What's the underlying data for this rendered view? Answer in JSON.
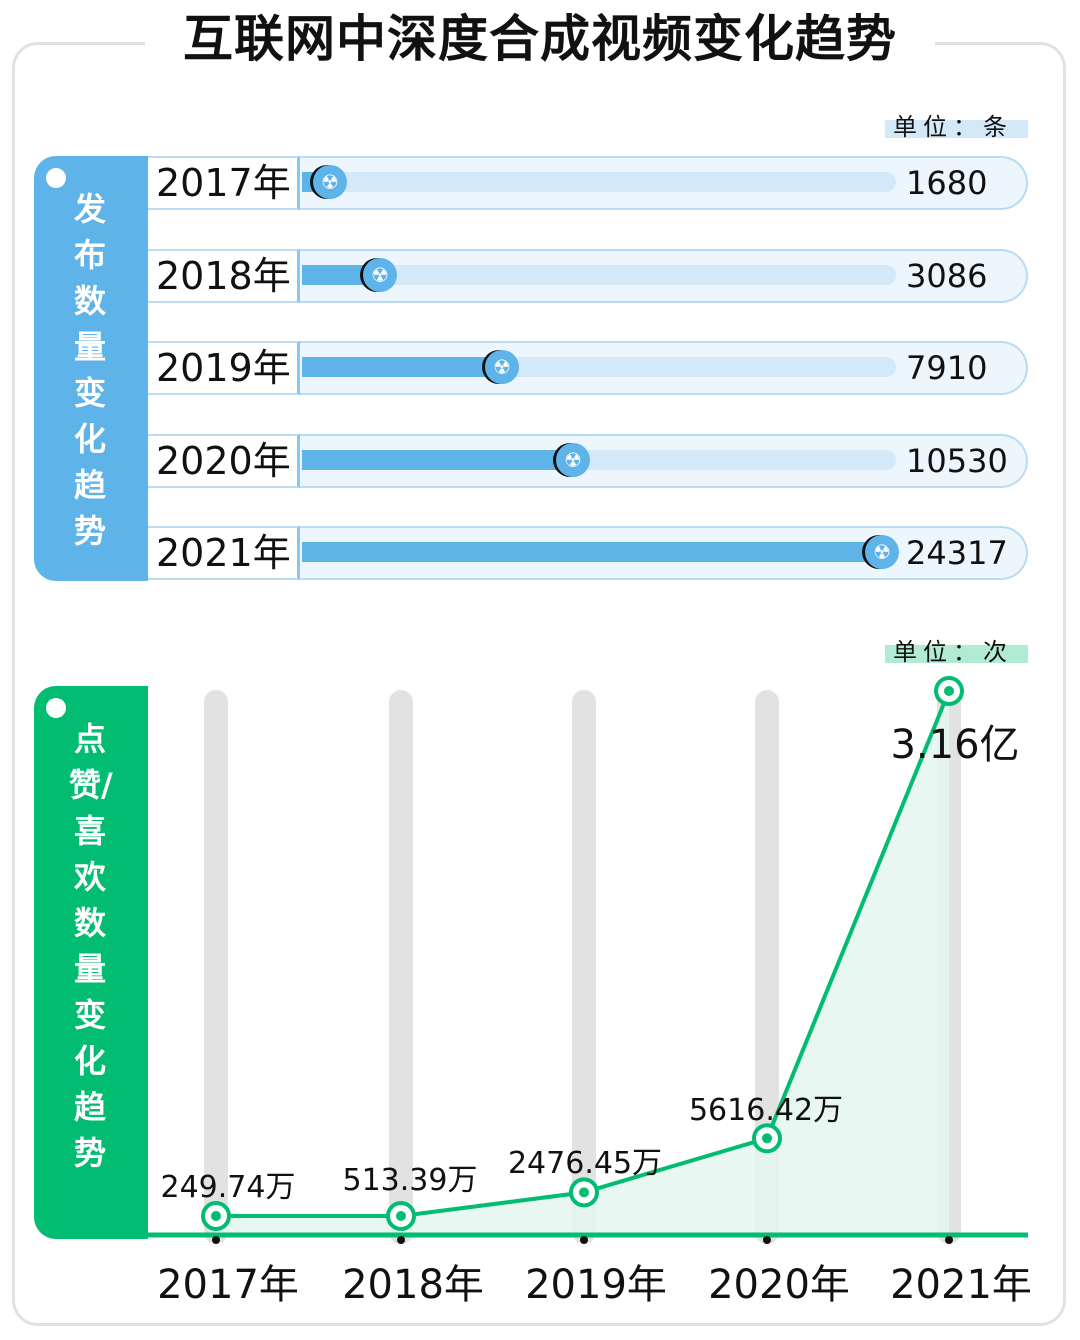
{
  "title": "互联网中深度合成视频变化趋势",
  "chart_data": [
    {
      "type": "bar",
      "orientation": "horizontal",
      "side_label": "发布数量变化趋势",
      "unit_label": "单位：条",
      "categories": [
        "2017年",
        "2018年",
        "2019年",
        "2020年",
        "2021年"
      ],
      "values": [
        1680,
        3086,
        7910,
        10530,
        24317
      ],
      "value_labels": [
        "1680",
        "3086",
        "7910",
        "10530",
        "24317"
      ],
      "color": "#5eb3e8",
      "icon": "radiation-icon"
    },
    {
      "type": "area",
      "side_label": "点赞/喜欢数量变化趋势",
      "unit_label": "单位：次",
      "categories": [
        "2017年",
        "2018年",
        "2019年",
        "2020年",
        "2021年"
      ],
      "values": [
        2497400,
        5133900,
        24764500,
        56164200,
        316000000
      ],
      "value_labels": [
        "249.74万",
        "513.39万",
        "2476.45万",
        "5616.42万",
        "3.16亿"
      ],
      "color": "#02bc72",
      "fill_color": "#e4f6ee",
      "grid": false
    }
  ]
}
